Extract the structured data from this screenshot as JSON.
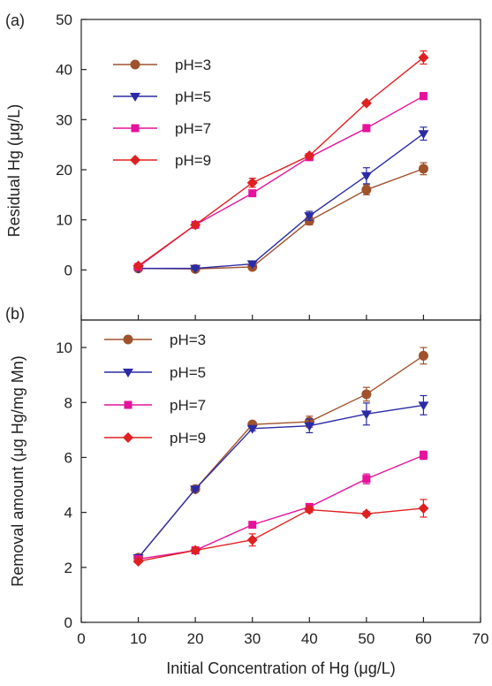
{
  "chart_data": [
    {
      "type": "line",
      "panel_label": "(a)",
      "xlabel": "Initial Concentration of Hg (μg/L)",
      "ylabel": "Residual Hg (μg/L)",
      "xlim": [
        0,
        70
      ],
      "ylim": [
        -10,
        50
      ],
      "x_ticks": [
        "0",
        "10",
        "20",
        "30",
        "40",
        "50",
        "60",
        "70"
      ],
      "y_ticks": [
        "0",
        "10",
        "20",
        "30",
        "40",
        "50"
      ],
      "x": [
        10,
        20,
        30,
        40,
        50,
        60
      ],
      "legend_position": "top-left",
      "grid": false,
      "series": [
        {
          "name": "pH=3",
          "color": "#a0522d",
          "marker": "circle",
          "values": [
            0.3,
            0.2,
            0.6,
            9.8,
            16.0,
            20.2
          ],
          "errors": [
            0.2,
            0.2,
            0.3,
            0.8,
            1.0,
            1.2
          ]
        },
        {
          "name": "pH=5",
          "color": "#2b2ba6",
          "marker": "triangle-down",
          "values": [
            0.3,
            0.3,
            1.2,
            10.8,
            18.8,
            27.2
          ],
          "errors": [
            0.2,
            0.2,
            0.4,
            0.9,
            1.6,
            1.3
          ]
        },
        {
          "name": "pH=7",
          "color": "#e6129b",
          "marker": "square",
          "values": [
            0.6,
            9.0,
            15.3,
            22.5,
            28.3,
            34.7
          ],
          "errors": [
            0.2,
            0.3,
            0.4,
            0.4,
            0.7,
            0.7
          ]
        },
        {
          "name": "pH=9",
          "color": "#e02020",
          "marker": "diamond",
          "values": [
            0.8,
            9.0,
            17.4,
            22.8,
            33.3,
            42.4
          ],
          "errors": [
            0.2,
            0.3,
            0.9,
            0.4,
            0.4,
            1.3
          ]
        }
      ]
    },
    {
      "type": "line",
      "panel_label": "(b)",
      "xlabel": "Initial Concentration of Hg (μg/L)",
      "ylabel": "Removal amount (μg Hg/mg Mn)",
      "xlim": [
        0,
        70
      ],
      "ylim": [
        0,
        11
      ],
      "x_ticks": [
        "0",
        "10",
        "20",
        "30",
        "40",
        "50",
        "60",
        "70"
      ],
      "y_ticks": [
        "0",
        "2",
        "4",
        "6",
        "8",
        "10"
      ],
      "x": [
        10,
        20,
        30,
        40,
        50,
        60
      ],
      "legend_position": "top-left",
      "grid": false,
      "series": [
        {
          "name": "pH=3",
          "color": "#a0522d",
          "marker": "circle",
          "values": [
            2.35,
            4.85,
            7.2,
            7.3,
            8.3,
            9.7
          ],
          "errors": [
            0.05,
            0.05,
            0.08,
            0.2,
            0.25,
            0.3
          ]
        },
        {
          "name": "pH=5",
          "color": "#2b2ba6",
          "marker": "triangle-down",
          "values": [
            2.35,
            4.85,
            7.05,
            7.15,
            7.58,
            7.9
          ],
          "errors": [
            0.05,
            0.05,
            0.08,
            0.25,
            0.4,
            0.35
          ]
        },
        {
          "name": "pH=7",
          "color": "#e6129b",
          "marker": "square",
          "values": [
            2.3,
            2.62,
            3.55,
            4.2,
            5.22,
            6.08
          ],
          "errors": [
            0.05,
            0.05,
            0.08,
            0.1,
            0.18,
            0.15
          ]
        },
        {
          "name": "pH=9",
          "color": "#e02020",
          "marker": "diamond",
          "values": [
            2.22,
            2.62,
            3.0,
            4.1,
            3.95,
            4.15
          ],
          "errors": [
            0.05,
            0.08,
            0.22,
            0.1,
            0.08,
            0.32
          ]
        }
      ]
    }
  ]
}
